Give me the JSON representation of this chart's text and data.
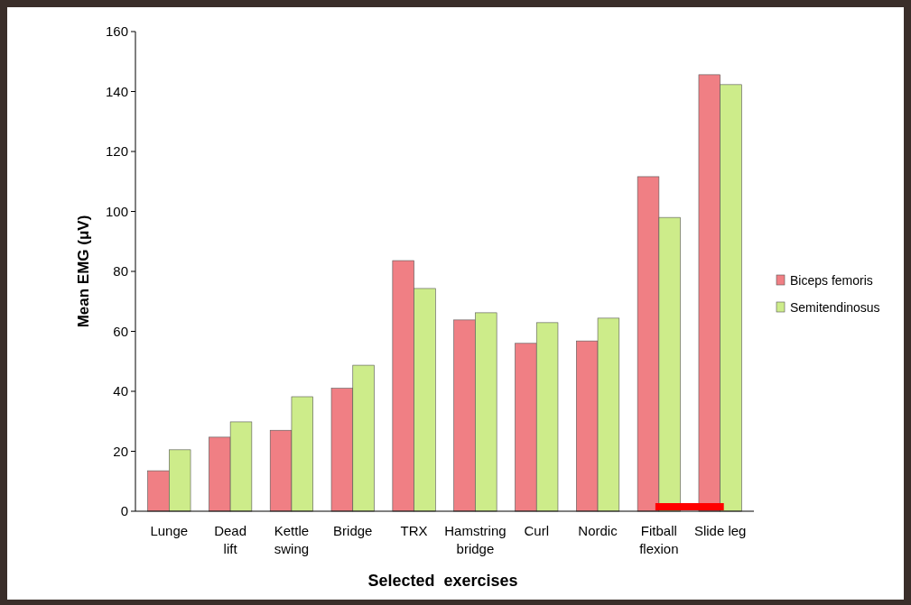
{
  "chart_data": {
    "type": "bar",
    "xlabel": "Selected  exercises",
    "ylabel": "Mean EMG (μV)",
    "categories": [
      "Lunge",
      "Dead\nlift",
      "Kettle\nswing",
      "Bridge",
      "TRX",
      "Hamstring\nbridge",
      "Curl",
      "Nordic",
      "Fitball\nflexion",
      "Slide leg"
    ],
    "series": [
      {
        "name": "Biceps femoris",
        "color": "#f07f84",
        "values": [
          13.5,
          24.7,
          27,
          41,
          83.6,
          63.8,
          56,
          56.8,
          111.6,
          145.6
        ]
      },
      {
        "name": "Semitendinosus",
        "color": "#cdec8a",
        "values": [
          20.5,
          29.8,
          38.2,
          48.7,
          74.3,
          66.2,
          62.9,
          64.4,
          98,
          142.3
        ]
      },
      {
        "type": "line",
        "color": "#ff0000",
        "values": [
          null,
          null,
          null,
          null,
          null,
          null,
          null,
          null,
          1.5,
          1.5
        ]
      }
    ],
    "ylim": [
      0,
      160
    ],
    "yticks": [
      0,
      20,
      40,
      60,
      80,
      100,
      120,
      140,
      160
    ],
    "grid": false,
    "legend": "right"
  }
}
